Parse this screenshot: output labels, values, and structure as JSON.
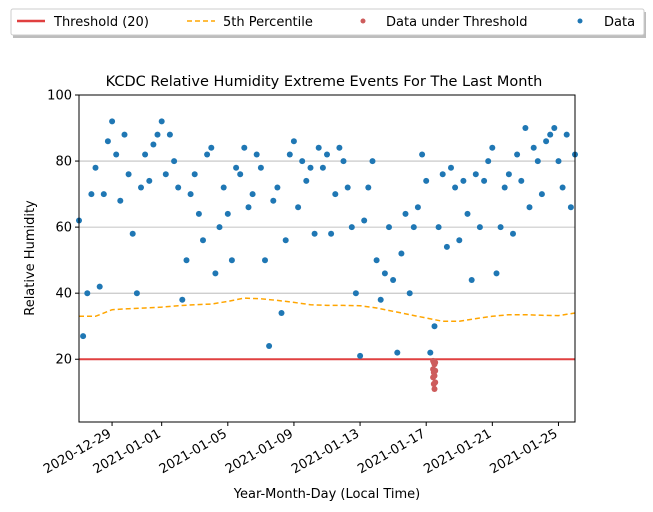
{
  "chart_data": {
    "type": "scatter",
    "title": "KCDC Relative Humidity Extreme Events For The Last Month",
    "xlabel": "Year-Month-Day (Local Time)",
    "ylabel": "Relative Humidity",
    "xlim": [
      "2020-12-27T00:00",
      "2021-01-26T00:00"
    ],
    "ylim": [
      1,
      100
    ],
    "x_ticks": [
      "2020-12-29",
      "2021-01-01",
      "2021-01-05",
      "2021-01-09",
      "2021-01-13",
      "2021-01-17",
      "2021-01-21",
      "2021-01-25"
    ],
    "y_ticks": [
      20,
      40,
      60,
      80,
      100
    ],
    "grid": "horizontal",
    "legend": {
      "placement": "above plot, full width",
      "entries": [
        {
          "label": "Threshold (20)",
          "style": "solid-line",
          "color": "#e04040"
        },
        {
          "label": "5th Percentile",
          "style": "dashed-line",
          "color": "#ffa500"
        },
        {
          "label": "Data under Threshold",
          "style": "marker",
          "color": "#cd5c5c"
        },
        {
          "label": "Data",
          "style": "marker",
          "color": "#1f77b4"
        }
      ]
    },
    "threshold": {
      "name": "Threshold (20)",
      "value": 20,
      "color": "#e04040"
    },
    "percentile_5th": {
      "name": "5th Percentile",
      "color": "#ffa500",
      "x": [
        "2020-12-27T00:00",
        "2020-12-28T00:00",
        "2020-12-29T00:00",
        "2020-12-30T00:00",
        "2020-12-31T00:00",
        "2021-01-01T00:00",
        "2021-01-02T00:00",
        "2021-01-03T00:00",
        "2021-01-04T00:00",
        "2021-01-05T00:00",
        "2021-01-06T00:00",
        "2021-01-07T00:00",
        "2021-01-08T00:00",
        "2021-01-09T00:00",
        "2021-01-10T00:00",
        "2021-01-11T00:00",
        "2021-01-12T00:00",
        "2021-01-13T00:00",
        "2021-01-14T00:00",
        "2021-01-15T00:00",
        "2021-01-16T00:00",
        "2021-01-17T00:00",
        "2021-01-18T00:00",
        "2021-01-19T00:00",
        "2021-01-20T00:00",
        "2021-01-21T00:00",
        "2021-01-22T00:00",
        "2021-01-23T00:00",
        "2021-01-24T00:00",
        "2021-01-25T00:00",
        "2021-01-26T00:00"
      ],
      "y": [
        33,
        33,
        35,
        35.3,
        35.5,
        35.8,
        36.2,
        36.5,
        36.7,
        37.5,
        38.5,
        38.3,
        37.8,
        37.2,
        36.5,
        36.3,
        36.3,
        36.2,
        35.5,
        34.5,
        33.5,
        32.5,
        31.5,
        31.5,
        32.3,
        33,
        33.5,
        33.5,
        33.3,
        33.2,
        34
      ]
    },
    "data_series": {
      "name": "Data",
      "color": "#1f77b4",
      "x": [
        "2020-12-27T00:00",
        "2020-12-27T06:00",
        "2020-12-27T12:00",
        "2020-12-27T18:00",
        "2020-12-28T00:00",
        "2020-12-28T06:00",
        "2020-12-28T12:00",
        "2020-12-28T18:00",
        "2020-12-29T00:00",
        "2020-12-29T06:00",
        "2020-12-29T12:00",
        "2020-12-29T18:00",
        "2020-12-30T00:00",
        "2020-12-30T06:00",
        "2020-12-30T12:00",
        "2020-12-30T18:00",
        "2020-12-31T00:00",
        "2020-12-31T06:00",
        "2020-12-31T12:00",
        "2020-12-31T18:00",
        "2021-01-01T00:00",
        "2021-01-01T06:00",
        "2021-01-01T12:00",
        "2021-01-01T18:00",
        "2021-01-02T00:00",
        "2021-01-02T06:00",
        "2021-01-02T12:00",
        "2021-01-02T18:00",
        "2021-01-03T00:00",
        "2021-01-03T06:00",
        "2021-01-03T12:00",
        "2021-01-03T18:00",
        "2021-01-04T00:00",
        "2021-01-04T06:00",
        "2021-01-04T12:00",
        "2021-01-04T18:00",
        "2021-01-05T00:00",
        "2021-01-05T06:00",
        "2021-01-05T12:00",
        "2021-01-05T18:00",
        "2021-01-06T00:00",
        "2021-01-06T06:00",
        "2021-01-06T12:00",
        "2021-01-06T18:00",
        "2021-01-07T00:00",
        "2021-01-07T06:00",
        "2021-01-07T12:00",
        "2021-01-07T18:00",
        "2021-01-08T00:00",
        "2021-01-08T06:00",
        "2021-01-08T12:00",
        "2021-01-08T18:00",
        "2021-01-09T00:00",
        "2021-01-09T06:00",
        "2021-01-09T12:00",
        "2021-01-09T18:00",
        "2021-01-10T00:00",
        "2021-01-10T06:00",
        "2021-01-10T12:00",
        "2021-01-10T18:00",
        "2021-01-11T00:00",
        "2021-01-11T06:00",
        "2021-01-11T12:00",
        "2021-01-11T18:00",
        "2021-01-12T00:00",
        "2021-01-12T06:00",
        "2021-01-12T12:00",
        "2021-01-12T18:00",
        "2021-01-13T00:00",
        "2021-01-13T06:00",
        "2021-01-13T12:00",
        "2021-01-13T18:00",
        "2021-01-14T00:00",
        "2021-01-14T06:00",
        "2021-01-14T12:00",
        "2021-01-14T18:00",
        "2021-01-15T00:00",
        "2021-01-15T06:00",
        "2021-01-15T12:00",
        "2021-01-15T18:00",
        "2021-01-16T00:00",
        "2021-01-16T06:00",
        "2021-01-16T12:00",
        "2021-01-16T18:00",
        "2021-01-17T00:00",
        "2021-01-17T06:00",
        "2021-01-17T12:00",
        "2021-01-17T18:00",
        "2021-01-18T00:00",
        "2021-01-18T06:00",
        "2021-01-18T12:00",
        "2021-01-18T18:00",
        "2021-01-19T00:00",
        "2021-01-19T06:00",
        "2021-01-19T12:00",
        "2021-01-19T18:00",
        "2021-01-20T00:00",
        "2021-01-20T06:00",
        "2021-01-20T12:00",
        "2021-01-20T18:00",
        "2021-01-21T00:00",
        "2021-01-21T06:00",
        "2021-01-21T12:00",
        "2021-01-21T18:00",
        "2021-01-22T00:00",
        "2021-01-22T06:00",
        "2021-01-22T12:00",
        "2021-01-22T18:00",
        "2021-01-23T00:00",
        "2021-01-23T06:00",
        "2021-01-23T12:00",
        "2021-01-23T18:00",
        "2021-01-24T00:00",
        "2021-01-24T06:00",
        "2021-01-24T12:00",
        "2021-01-24T18:00",
        "2021-01-25T00:00",
        "2021-01-25T06:00",
        "2021-01-25T12:00",
        "2021-01-25T18:00",
        "2021-01-26T00:00"
      ],
      "y": [
        62,
        27,
        40,
        70,
        78,
        42,
        70,
        86,
        92,
        82,
        68,
        88,
        76,
        58,
        40,
        72,
        82,
        74,
        85,
        88,
        92,
        76,
        88,
        80,
        72,
        38,
        50,
        70,
        76,
        64,
        56,
        82,
        84,
        46,
        60,
        72,
        64,
        50,
        78,
        76,
        84,
        66,
        70,
        82,
        78,
        50,
        24,
        68,
        72,
        34,
        56,
        82,
        86,
        66,
        80,
        74,
        78,
        58,
        84,
        78,
        82,
        58,
        70,
        84,
        80,
        72,
        60,
        40,
        21,
        62,
        72,
        80,
        50,
        38,
        46,
        60,
        44,
        22,
        52,
        64,
        40,
        60,
        66,
        82,
        74,
        22,
        30,
        60,
        76,
        54,
        78,
        72,
        56,
        74,
        64,
        44,
        76,
        60,
        74,
        80,
        84,
        46,
        60,
        72,
        76,
        58,
        82,
        74,
        90,
        66,
        84,
        80,
        70,
        86,
        88,
        90,
        80,
        72,
        88,
        66,
        82
      ]
    },
    "under_threshold_series": {
      "name": "Data under Threshold",
      "color": "#cd5c5c",
      "x": [
        "2021-01-17T10:00",
        "2021-01-17T10:00",
        "2021-01-17T10:00",
        "2021-01-17T11:00",
        "2021-01-17T11:00",
        "2021-01-17T11:00",
        "2021-01-17T12:00",
        "2021-01-17T12:00",
        "2021-01-17T12:00",
        "2021-01-17T13:00",
        "2021-01-17T13:00",
        "2021-01-17T13:00"
      ],
      "y": [
        19.5,
        17,
        14.5,
        19,
        16,
        12.5,
        18.5,
        15,
        11,
        19,
        16.5,
        13
      ]
    }
  }
}
